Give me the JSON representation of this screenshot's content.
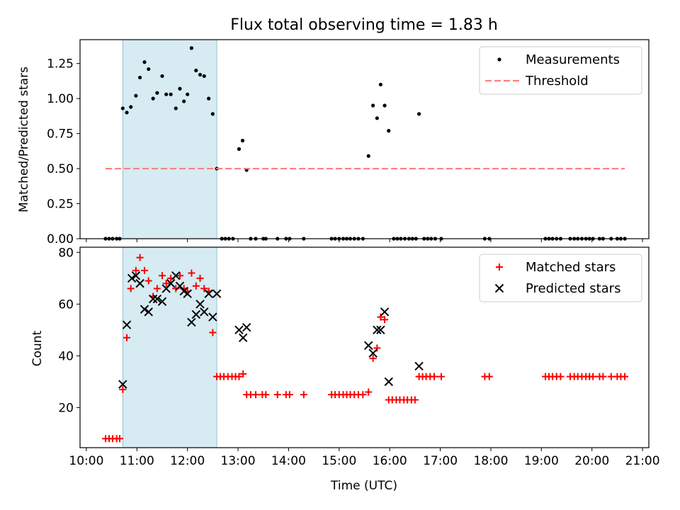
{
  "chart_data": {
    "title": "Flux total observing time = 1.83 h",
    "xlabel": "Time (UTC)",
    "x_ticks": [
      "10:00",
      "11:00",
      "12:00",
      "13:00",
      "14:00",
      "15:00",
      "16:00",
      "17:00",
      "18:00",
      "19:00",
      "20:00",
      "21:00"
    ],
    "x_range_hours": [
      9.875,
      21.125
    ],
    "highlight_span_hours": [
      10.72,
      12.58
    ],
    "panels": [
      {
        "type": "scatter",
        "ylabel": "Matched/Predicted stars",
        "ylim": [
          0,
          1.42
        ],
        "y_ticks": [
          "0.00",
          "0.25",
          "0.50",
          "0.75",
          "1.00",
          "1.25"
        ],
        "legend_position": "top-right",
        "series": [
          {
            "name": "Measurements",
            "marker": "dot",
            "color": "#000000",
            "points": [
              [
                10.38,
                0
              ],
              [
                10.45,
                0
              ],
              [
                10.52,
                0
              ],
              [
                10.6,
                0
              ],
              [
                10.66,
                0
              ],
              [
                10.72,
                0.93
              ],
              [
                10.8,
                0.9
              ],
              [
                10.88,
                0.94
              ],
              [
                10.98,
                1.02
              ],
              [
                11.06,
                1.15
              ],
              [
                11.15,
                1.26
              ],
              [
                11.23,
                1.21
              ],
              [
                11.32,
                1.0
              ],
              [
                11.4,
                1.04
              ],
              [
                11.5,
                1.16
              ],
              [
                11.58,
                1.03
              ],
              [
                11.67,
                1.03
              ],
              [
                11.77,
                0.93
              ],
              [
                11.85,
                1.07
              ],
              [
                11.93,
                0.98
              ],
              [
                12.0,
                1.03
              ],
              [
                12.08,
                1.36
              ],
              [
                12.17,
                1.2
              ],
              [
                12.25,
                1.17
              ],
              [
                12.33,
                1.16
              ],
              [
                12.42,
                1.0
              ],
              [
                12.5,
                0.89
              ],
              [
                12.58,
                0.5
              ],
              [
                12.68,
                0
              ],
              [
                12.75,
                0
              ],
              [
                12.82,
                0
              ],
              [
                12.9,
                0
              ],
              [
                13.02,
                0.64
              ],
              [
                13.09,
                0.7
              ],
              [
                13.17,
                0.49
              ],
              [
                13.25,
                0
              ],
              [
                13.35,
                0
              ],
              [
                13.5,
                0
              ],
              [
                13.55,
                0
              ],
              [
                13.78,
                0
              ],
              [
                13.95,
                0
              ],
              [
                14.02,
                0
              ],
              [
                14.3,
                0
              ],
              [
                14.85,
                0
              ],
              [
                14.92,
                0
              ],
              [
                15.0,
                0
              ],
              [
                15.08,
                0
              ],
              [
                15.15,
                0
              ],
              [
                15.22,
                0
              ],
              [
                15.3,
                0
              ],
              [
                15.38,
                0
              ],
              [
                15.47,
                0
              ],
              [
                15.58,
                0.59
              ],
              [
                15.67,
                0.95
              ],
              [
                15.75,
                0.86
              ],
              [
                15.82,
                1.1
              ],
              [
                15.9,
                0.95
              ],
              [
                15.98,
                0.77
              ],
              [
                16.08,
                0
              ],
              [
                16.15,
                0
              ],
              [
                16.22,
                0
              ],
              [
                16.3,
                0
              ],
              [
                16.38,
                0
              ],
              [
                16.45,
                0
              ],
              [
                16.52,
                0
              ],
              [
                16.58,
                0.89
              ],
              [
                16.68,
                0
              ],
              [
                16.75,
                0
              ],
              [
                16.82,
                0
              ],
              [
                16.9,
                0
              ],
              [
                17.02,
                0
              ],
              [
                17.88,
                0
              ],
              [
                17.97,
                0
              ],
              [
                19.08,
                0
              ],
              [
                19.15,
                0
              ],
              [
                19.22,
                0
              ],
              [
                19.3,
                0
              ],
              [
                19.38,
                0
              ],
              [
                19.57,
                0
              ],
              [
                19.65,
                0
              ],
              [
                19.72,
                0
              ],
              [
                19.8,
                0
              ],
              [
                19.88,
                0
              ],
              [
                19.95,
                0
              ],
              [
                20.02,
                0
              ],
              [
                20.15,
                0
              ],
              [
                20.22,
                0
              ],
              [
                20.38,
                0
              ],
              [
                20.5,
                0
              ],
              [
                20.57,
                0
              ],
              [
                20.65,
                0
              ]
            ]
          },
          {
            "name": "Threshold",
            "marker": "dashed-line",
            "color": "#ff7f7f",
            "points": [
              [
                10.38,
                0.5
              ],
              [
                20.65,
                0.5
              ]
            ]
          }
        ]
      },
      {
        "type": "scatter",
        "ylabel": "Count",
        "ylim": [
          4.5,
          82
        ],
        "y_ticks": [
          "20",
          "40",
          "60",
          "80"
        ],
        "legend_position": "top-right",
        "series": [
          {
            "name": "Matched stars",
            "marker": "plus",
            "color": "#ff0000",
            "points": [
              [
                10.38,
                8
              ],
              [
                10.45,
                8
              ],
              [
                10.52,
                8
              ],
              [
                10.6,
                8
              ],
              [
                10.66,
                8
              ],
              [
                10.72,
                27
              ],
              [
                10.8,
                47
              ],
              [
                10.88,
                66
              ],
              [
                10.98,
                73
              ],
              [
                11.06,
                78
              ],
              [
                11.15,
                73
              ],
              [
                11.23,
                69
              ],
              [
                11.32,
                63
              ],
              [
                11.4,
                66
              ],
              [
                11.5,
                71
              ],
              [
                11.58,
                68
              ],
              [
                11.67,
                70
              ],
              [
                11.77,
                66
              ],
              [
                11.85,
                71
              ],
              [
                11.93,
                66
              ],
              [
                12.0,
                65
              ],
              [
                12.08,
                72
              ],
              [
                12.17,
                67
              ],
              [
                12.25,
                70
              ],
              [
                12.33,
                66
              ],
              [
                12.42,
                65
              ],
              [
                12.5,
                49
              ],
              [
                12.58,
                32
              ],
              [
                12.65,
                32
              ],
              [
                12.72,
                32
              ],
              [
                12.8,
                32
              ],
              [
                12.88,
                32
              ],
              [
                12.95,
                32
              ],
              [
                13.02,
                32
              ],
              [
                13.1,
                33
              ],
              [
                13.17,
                25
              ],
              [
                13.25,
                25
              ],
              [
                13.35,
                25
              ],
              [
                13.48,
                25
              ],
              [
                13.55,
                25
              ],
              [
                13.78,
                25
              ],
              [
                13.95,
                25
              ],
              [
                14.02,
                25
              ],
              [
                14.3,
                25
              ],
              [
                14.85,
                25
              ],
              [
                14.92,
                25
              ],
              [
                15.0,
                25
              ],
              [
                15.08,
                25
              ],
              [
                15.15,
                25
              ],
              [
                15.22,
                25
              ],
              [
                15.3,
                25
              ],
              [
                15.38,
                25
              ],
              [
                15.47,
                25
              ],
              [
                15.58,
                26
              ],
              [
                15.67,
                39
              ],
              [
                15.75,
                43
              ],
              [
                15.82,
                55
              ],
              [
                15.9,
                54
              ],
              [
                15.98,
                23
              ],
              [
                16.05,
                23
              ],
              [
                16.13,
                23
              ],
              [
                16.2,
                23
              ],
              [
                16.28,
                23
              ],
              [
                16.35,
                23
              ],
              [
                16.43,
                23
              ],
              [
                16.5,
                23
              ],
              [
                16.58,
                32
              ],
              [
                16.65,
                32
              ],
              [
                16.72,
                32
              ],
              [
                16.8,
                32
              ],
              [
                16.88,
                32
              ],
              [
                17.02,
                32
              ],
              [
                17.88,
                32
              ],
              [
                17.97,
                32
              ],
              [
                19.08,
                32
              ],
              [
                19.15,
                32
              ],
              [
                19.22,
                32
              ],
              [
                19.3,
                32
              ],
              [
                19.38,
                32
              ],
              [
                19.57,
                32
              ],
              [
                19.65,
                32
              ],
              [
                19.72,
                32
              ],
              [
                19.8,
                32
              ],
              [
                19.88,
                32
              ],
              [
                19.95,
                32
              ],
              [
                20.02,
                32
              ],
              [
                20.15,
                32
              ],
              [
                20.22,
                32
              ],
              [
                20.38,
                32
              ],
              [
                20.5,
                32
              ],
              [
                20.57,
                32
              ],
              [
                20.65,
                32
              ]
            ]
          },
          {
            "name": "Predicted stars",
            "marker": "x",
            "color": "#000000",
            "points": [
              [
                10.72,
                29
              ],
              [
                10.8,
                52
              ],
              [
                10.9,
                70
              ],
              [
                10.98,
                71
              ],
              [
                11.06,
                68
              ],
              [
                11.15,
                58
              ],
              [
                11.23,
                57
              ],
              [
                11.32,
                62
              ],
              [
                11.4,
                62
              ],
              [
                11.5,
                61
              ],
              [
                11.58,
                66
              ],
              [
                11.67,
                68
              ],
              [
                11.77,
                71
              ],
              [
                11.85,
                67
              ],
              [
                11.93,
                65
              ],
              [
                12.0,
                64
              ],
              [
                12.08,
                53
              ],
              [
                12.17,
                56
              ],
              [
                12.25,
                60
              ],
              [
                12.33,
                57
              ],
              [
                12.42,
                64
              ],
              [
                12.5,
                55
              ],
              [
                12.58,
                64
              ],
              [
                13.02,
                50
              ],
              [
                13.1,
                47
              ],
              [
                13.17,
                51
              ],
              [
                15.58,
                44
              ],
              [
                15.67,
                41
              ],
              [
                15.75,
                50
              ],
              [
                15.82,
                50
              ],
              [
                15.9,
                57
              ],
              [
                15.98,
                30
              ],
              [
                16.58,
                36
              ]
            ]
          }
        ]
      }
    ]
  }
}
